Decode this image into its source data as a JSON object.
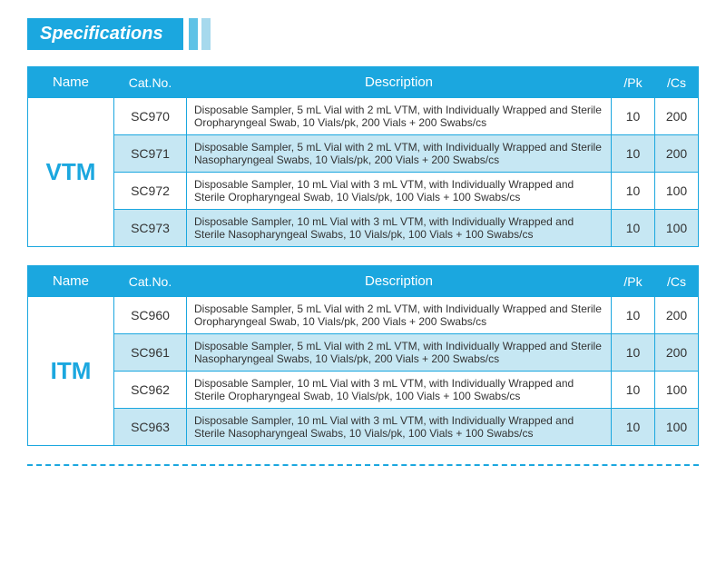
{
  "header": {
    "title": "Specifications"
  },
  "columns": [
    "Name",
    "Cat.No.",
    "Description",
    "/Pk",
    "/Cs"
  ],
  "tables": [
    {
      "name": "VTM",
      "rows": [
        {
          "cat": "SC970",
          "desc": "Disposable Sampler, 5 mL Vial with 2 mL VTM, with Individually Wrapped and Sterile Oropharyngeal Swab, 10 Vials/pk, 200 Vials + 200 Swabs/cs",
          "pk": "10",
          "cs": "200"
        },
        {
          "cat": "SC971",
          "desc": "Disposable Sampler, 5 mL Vial with 2 mL VTM, with Individually Wrapped and Sterile Nasopharyngeal Swabs, 10 Vials/pk, 200 Vials + 200 Swabs/cs",
          "pk": "10",
          "cs": "200"
        },
        {
          "cat": "SC972",
          "desc": "Disposable Sampler, 10 mL Vial with 3 mL VTM, with Individually Wrapped and Sterile Oropharyngeal Swab, 10 Vials/pk, 100 Vials + 100 Swabs/cs",
          "pk": "10",
          "cs": "100"
        },
        {
          "cat": "SC973",
          "desc": "Disposable Sampler, 10 mL Vial with 3 mL VTM, with Individually Wrapped and Sterile Nasopharyngeal Swabs, 10 Vials/pk, 100 Vials + 100 Swabs/cs",
          "pk": "10",
          "cs": "100"
        }
      ]
    },
    {
      "name": "ITM",
      "rows": [
        {
          "cat": "SC960",
          "desc": "Disposable Sampler, 5 mL Vial with 2 mL VTM, with Individually Wrapped and Sterile Oropharyngeal Swab, 10 Vials/pk, 200 Vials + 200 Swabs/cs",
          "pk": "10",
          "cs": "200"
        },
        {
          "cat": "SC961",
          "desc": "Disposable Sampler, 5 mL Vial with 2 mL VTM, with Individually Wrapped and Sterile Nasopharyngeal Swabs, 10 Vials/pk, 200 Vials + 200 Swabs/cs",
          "pk": "10",
          "cs": "200"
        },
        {
          "cat": "SC962",
          "desc": "Disposable Sampler, 10 mL Vial with 3 mL VTM, with Individually Wrapped and Sterile Oropharyngeal Swab, 10 Vials/pk, 100 Vials + 100 Swabs/cs",
          "pk": "10",
          "cs": "100"
        },
        {
          "cat": "SC963",
          "desc": "Disposable Sampler, 10 mL Vial with 3 mL VTM, with Individually Wrapped and Sterile Nasopharyngeal Swabs, 10 Vials/pk, 100 Vials + 100 Swabs/cs",
          "pk": "10",
          "cs": "100"
        }
      ]
    }
  ]
}
